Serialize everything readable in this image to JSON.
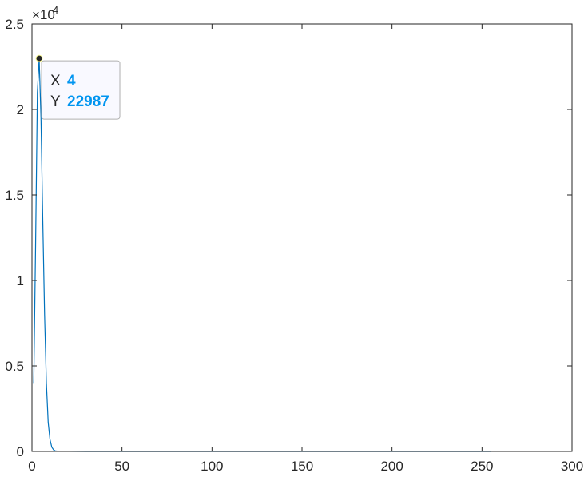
{
  "chart_data": {
    "type": "line",
    "xlim": [
      0,
      300
    ],
    "ylim": [
      0,
      25000
    ],
    "x_ticks": [
      0,
      50,
      100,
      150,
      200,
      250,
      300
    ],
    "y_ticks": [
      0,
      5000,
      10000,
      15000,
      20000,
      25000
    ],
    "x_tick_labels": [
      "0",
      "50",
      "100",
      "150",
      "200",
      "250",
      "300"
    ],
    "y_tick_labels": [
      "0",
      "0.5",
      "1",
      "1.5",
      "2",
      "2.5"
    ],
    "y_exponent_base": "×10",
    "y_exponent_power": "4",
    "grid": false,
    "box": true,
    "series": [
      {
        "color": "#0072BD",
        "x": [
          1,
          2,
          3,
          4,
          5,
          6,
          7,
          8,
          9,
          10,
          11,
          12,
          13,
          15,
          20,
          30,
          50,
          100,
          150,
          200,
          255
        ],
        "y": [
          4000,
          12000,
          21000,
          22987,
          19500,
          13500,
          8000,
          4000,
          1700,
          700,
          250,
          90,
          30,
          8,
          2,
          0,
          0,
          0,
          0,
          0,
          0
        ]
      }
    ],
    "datatip": {
      "x_key": "X",
      "x_value": "4",
      "y_key": "Y",
      "y_value": "22987",
      "point": [
        4,
        22987
      ],
      "value_color": "#0095F0"
    }
  }
}
